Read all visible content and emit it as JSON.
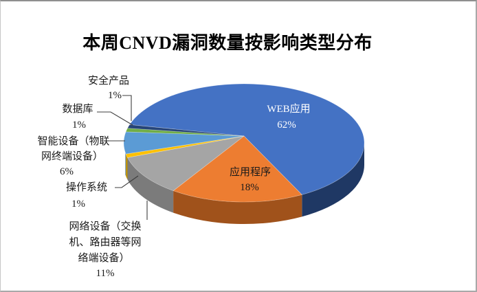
{
  "page": {
    "title": "本周CNVD漏洞数量按影响类型分布"
  },
  "chart_data": {
    "type": "pie",
    "style": "3d",
    "title": "本周CNVD漏洞数量按影响类型分布",
    "value_unit": "percent",
    "total": 100,
    "legend_position": "none",
    "rotation_deg_clockwise_from_top": 288,
    "slices": [
      {
        "id": "web",
        "label": "WEB应用",
        "value": 62,
        "pct_label": "62%",
        "color": "#4472C4",
        "side_color": "#1F3864",
        "label_placement": "inside",
        "label_color": "#FFFFFF"
      },
      {
        "id": "app",
        "label": "应用程序",
        "value": 18,
        "pct_label": "18%",
        "color": "#ED7D31",
        "side_color": "#A0521B",
        "label_placement": "inside",
        "label_color": "#1A1A1A"
      },
      {
        "id": "network",
        "label": "网络设备（交换机、路由器等网络端设备）",
        "label_lines": [
          "网络设备（交换",
          "机、路由器等网",
          "络端设备）"
        ],
        "value": 11,
        "pct_label": "11%",
        "color": "#A5A5A5",
        "side_color": "#7B7B7B",
        "label_placement": "outside"
      },
      {
        "id": "os",
        "label": "操作系统",
        "label_lines": [
          "操作系统"
        ],
        "value": 1,
        "pct_label": "1%",
        "color": "#FFC000",
        "side_color": "#BF9000",
        "label_placement": "outside"
      },
      {
        "id": "iot",
        "label": "智能设备（物联网终端设备）",
        "label_lines": [
          "智能设备（物联",
          "网终端设备）"
        ],
        "value": 6,
        "pct_label": "6%",
        "color": "#5B9BD5",
        "side_color": "#3A6F9F",
        "label_placement": "outside"
      },
      {
        "id": "db",
        "label": "数据库",
        "label_lines": [
          "数据库"
        ],
        "value": 1,
        "pct_label": "1%",
        "color": "#70AD47",
        "side_color": "#507D33",
        "label_placement": "outside"
      },
      {
        "id": "security",
        "label": "安全产品",
        "label_lines": [
          "安全产品"
        ],
        "value": 1,
        "pct_label": "1%",
        "color": "#264478",
        "side_color": "#1A2E50",
        "label_placement": "outside"
      }
    ]
  }
}
